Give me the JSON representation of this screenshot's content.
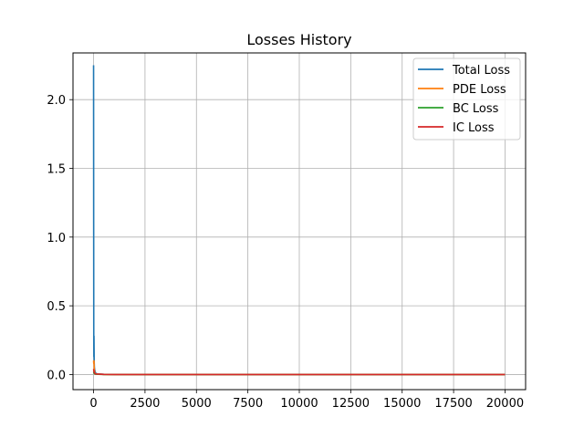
{
  "chart_data": {
    "type": "line",
    "title": "Losses History",
    "xlabel": "",
    "ylabel": "",
    "xlim": [
      -1000,
      21000
    ],
    "ylim": [
      -0.11,
      2.34
    ],
    "xticks": [
      0,
      2500,
      5000,
      7500,
      10000,
      12500,
      15000,
      17500,
      20000
    ],
    "xtick_labels": [
      "0",
      "2500",
      "5000",
      "7500",
      "10000",
      "12500",
      "15000",
      "17500",
      "20000"
    ],
    "yticks": [
      0.0,
      0.5,
      1.0,
      1.5,
      2.0
    ],
    "ytick_labels": [
      "0.0",
      "0.5",
      "1.0",
      "1.5",
      "2.0"
    ],
    "grid": true,
    "legend_position": "top-right",
    "series": [
      {
        "name": "Total Loss",
        "color": "#1f77b4",
        "x": [
          0,
          5,
          10,
          15,
          20,
          30,
          40,
          60,
          80,
          100,
          150,
          200,
          500,
          1000,
          2500,
          5000,
          7500,
          10000,
          12500,
          15000,
          17500,
          20000
        ],
        "y": [
          2.25,
          1.1,
          0.25,
          0.13,
          0.28,
          0.09,
          0.05,
          0.03,
          0.02,
          0.01,
          0.006,
          0.004,
          0.002,
          0.001,
          0.0,
          0.0,
          0.0,
          0.0,
          0.0,
          0.0,
          0.0,
          0.0
        ]
      },
      {
        "name": "PDE Loss",
        "color": "#ff7f0e",
        "x": [
          0,
          10,
          20,
          30,
          40,
          60,
          100,
          200,
          500,
          1000,
          5000,
          10000,
          15000,
          20000
        ],
        "y": [
          0.1,
          0.08,
          0.1,
          0.05,
          0.03,
          0.01,
          0.005,
          0.003,
          0.001,
          0.0,
          0.0,
          0.0,
          0.0,
          0.0
        ]
      },
      {
        "name": "BC Loss",
        "color": "#2ca02c",
        "x": [
          0,
          10,
          20,
          50,
          100,
          500,
          1000,
          5000,
          10000,
          15000,
          20000
        ],
        "y": [
          0.02,
          0.015,
          0.01,
          0.005,
          0.002,
          0.0,
          0.0,
          0.0,
          0.0,
          0.0,
          0.0
        ]
      },
      {
        "name": "IC Loss",
        "color": "#d62728",
        "x": [
          0,
          10,
          20,
          50,
          100,
          500,
          1000,
          5000,
          10000,
          15000,
          20000
        ],
        "y": [
          0.04,
          0.03,
          0.02,
          0.01,
          0.004,
          0.001,
          0.0,
          0.0,
          0.0,
          0.0,
          0.0
        ]
      }
    ]
  }
}
